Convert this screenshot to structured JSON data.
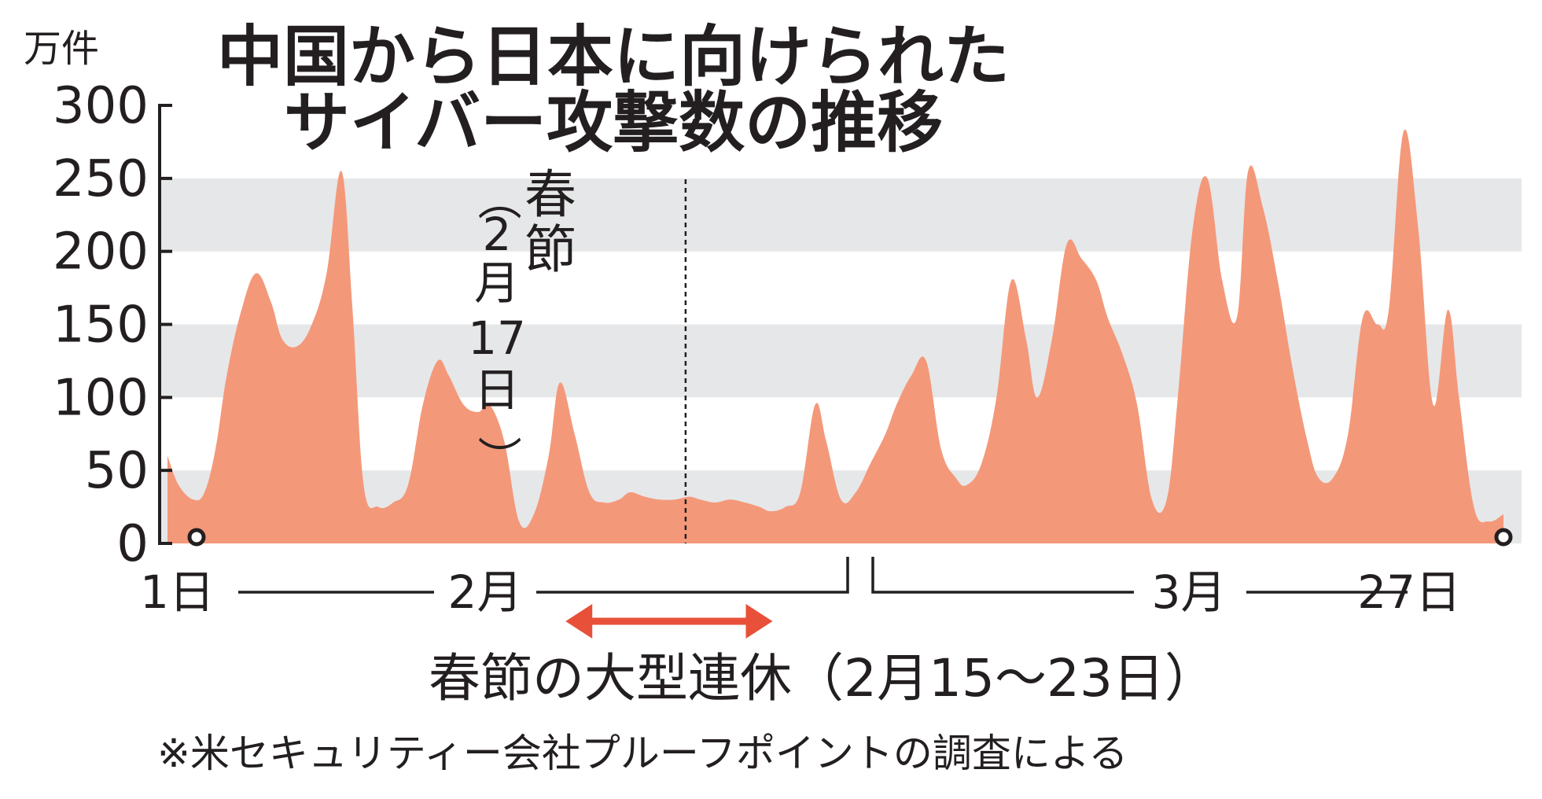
{
  "chart_data": {
    "type": "area",
    "title_line1": "中国から日本に向けられた",
    "title_line2": "サイバー攻撃数の推移",
    "yunit": "万件",
    "ylim": [
      0,
      300
    ],
    "yticks": [
      0,
      50,
      100,
      150,
      200,
      250,
      300
    ],
    "y_tick_labels": [
      "0",
      "50",
      "100",
      "150",
      "200",
      "250",
      "300"
    ],
    "grid_bands": [
      [
        0,
        50
      ],
      [
        100,
        150
      ],
      [
        200,
        250
      ]
    ],
    "x_start_label": "1日",
    "x_end_label": "27日",
    "month_labels": [
      "2月",
      "3月"
    ],
    "annotation_chars": [
      "春",
      "節"
    ],
    "annotation_paren_open": "（",
    "annotation_paren_close": "）",
    "annotation_date_chars": [
      "2",
      "月",
      "17",
      "日"
    ],
    "annotation_x": 14,
    "holiday_label": "春節の大型連休（2月15～23日）",
    "holiday_range": [
      11.5,
      15.5
    ],
    "source": "※米セキュリティー会社プルーフポイントの調査による",
    "fill_color": "#f4987a",
    "band_color": "#e6e7e8",
    "arrow_color": "#e8503a",
    "series_x": [
      0.0,
      0.3,
      0.7,
      1.0,
      1.3,
      1.6,
      2.0,
      2.4,
      2.8,
      3.1,
      3.5,
      3.9,
      4.3,
      4.7,
      5.0,
      5.3,
      5.7,
      6.1,
      6.5,
      6.9,
      7.3,
      7.6,
      8.0,
      8.4,
      8.7,
      9.1,
      9.5,
      9.9,
      10.3,
      10.6,
      11.0,
      11.4,
      11.8,
      12.2,
      12.5,
      12.9,
      13.3,
      13.7,
      14.1,
      14.4,
      14.8,
      15.2,
      15.6,
      16.0,
      16.3,
      16.7,
      17.1,
      17.5,
      17.8,
      18.2,
      18.6,
      19.0,
      19.4,
      19.7,
      20.1,
      20.5,
      20.9,
      21.3,
      21.6,
      22.0,
      22.4,
      22.8,
      23.2,
      23.5,
      23.9,
      24.3,
      24.7,
      25.1,
      25.4,
      25.8,
      26.2,
      26.6,
      27.0,
      27.3,
      27.7,
      28.1,
      28.5,
      28.9,
      29.2,
      29.6,
      30.0,
      30.4,
      30.8,
      31.1,
      31.5,
      31.9,
      32.3,
      32.7,
      33.0,
      33.4,
      33.8,
      34.2,
      34.6,
      34.9,
      35.3,
      35.7,
      36.1
    ],
    "series_y": [
      60,
      40,
      30,
      35,
      65,
      115,
      160,
      185,
      165,
      140,
      135,
      150,
      185,
      255,
      160,
      40,
      25,
      28,
      40,
      95,
      125,
      115,
      95,
      90,
      95,
      70,
      15,
      20,
      60,
      110,
      75,
      35,
      28,
      30,
      35,
      32,
      30,
      30,
      32,
      30,
      28,
      30,
      28,
      25,
      22,
      25,
      35,
      95,
      70,
      30,
      35,
      55,
      75,
      95,
      115,
      125,
      65,
      45,
      40,
      55,
      100,
      180,
      140,
      100,
      140,
      205,
      195,
      180,
      155,
      130,
      95,
      30,
      30,
      100,
      215,
      250,
      180,
      155,
      255,
      230,
      180,
      120,
      70,
      45,
      45,
      75,
      155,
      150,
      160,
      282,
      215,
      95,
      160,
      100,
      25,
      15,
      20
    ]
  }
}
